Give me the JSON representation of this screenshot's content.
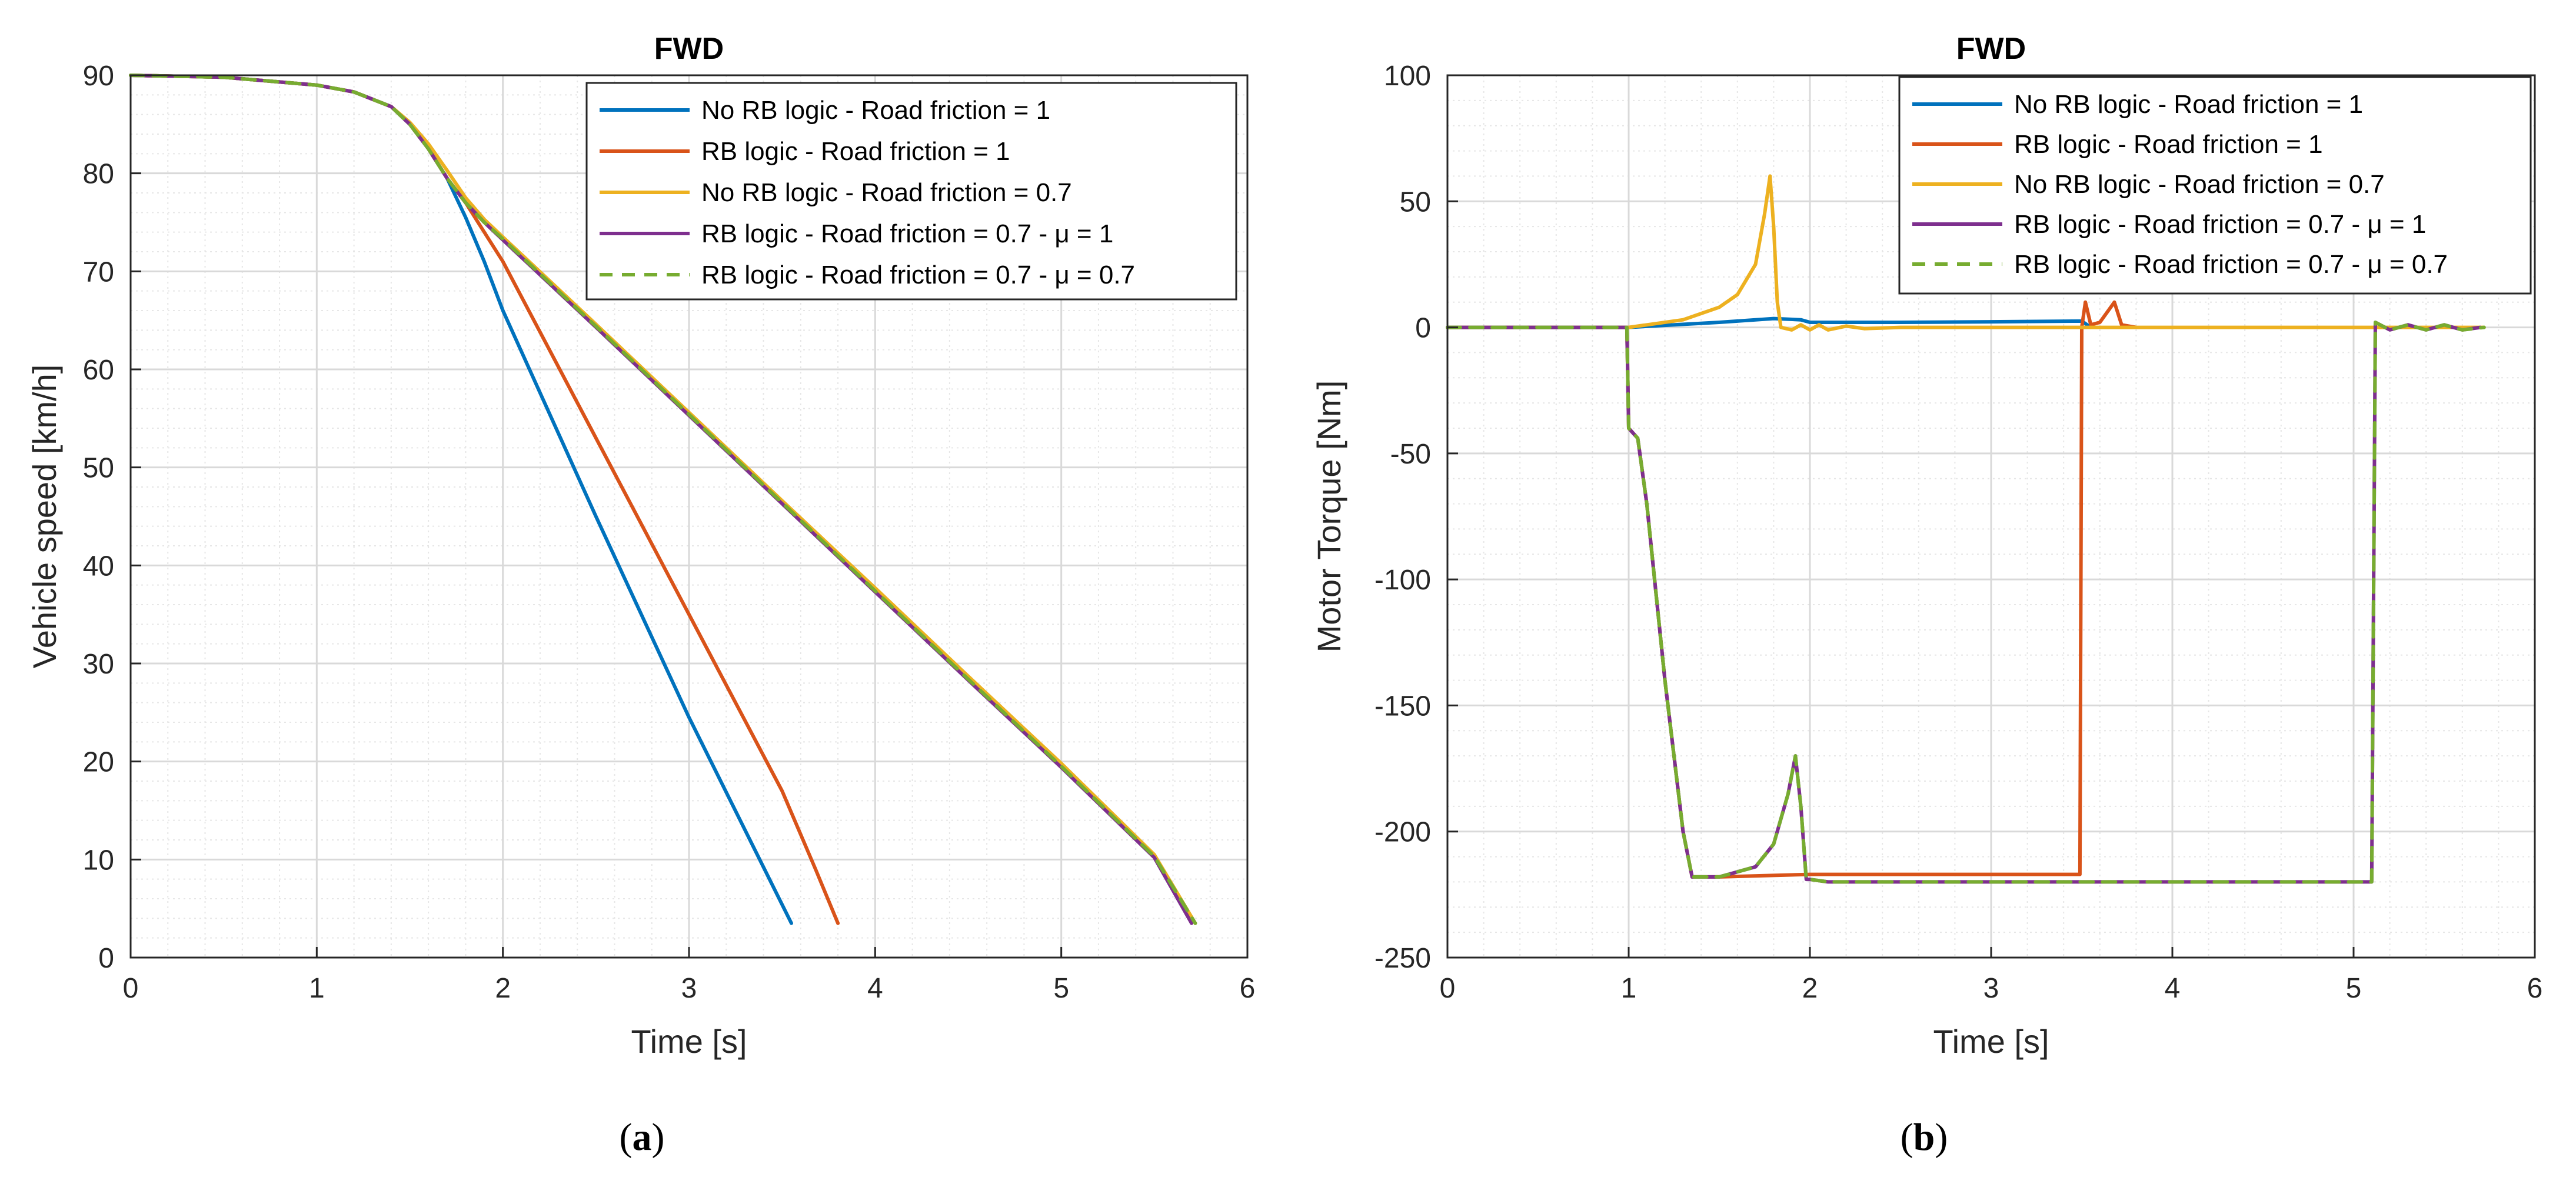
{
  "colors": {
    "no_rb_f1": "#0072BD",
    "rb_f1": "#D95319",
    "no_rb_f07": "#EDB120",
    "rb_f07_mu1": "#7E2F8E",
    "rb_f07_mu07": "#77AC30"
  },
  "chart_data": [
    {
      "type": "line",
      "title": "FWD",
      "xlabel": "Time [s]",
      "ylabel": "Vehicle speed [km/h]",
      "xlim": [
        0,
        6
      ],
      "ylim": [
        0,
        90
      ],
      "xticks": [
        "0",
        "1",
        "2",
        "3",
        "4",
        "5",
        "6"
      ],
      "yticks": [
        "0",
        "10",
        "20",
        "30",
        "40",
        "50",
        "60",
        "70",
        "80",
        "90"
      ],
      "xtick_values": [
        0,
        1,
        2,
        3,
        4,
        5,
        6
      ],
      "ytick_values": [
        0,
        10,
        20,
        30,
        40,
        50,
        60,
        70,
        80,
        90
      ],
      "grid": true,
      "legend_position": "top-right",
      "caption": {
        "open": "(",
        "letter": "a",
        "close": ")"
      },
      "series": [
        {
          "name": "No RB logic - Road friction = 1",
          "color_key": "no_rb_f1",
          "dash": false,
          "x": [
            0,
            0.5,
            1.0,
            1.2,
            1.4,
            1.5,
            1.6,
            1.7,
            1.8,
            1.9,
            2.0,
            2.5,
            3.0,
            3.55
          ],
          "y": [
            90,
            89.8,
            89,
            88.3,
            86.8,
            85,
            82.5,
            79.5,
            75.5,
            71,
            66,
            45,
            24.5,
            3.5
          ]
        },
        {
          "name": "RB logic - Road friction = 1",
          "color_key": "rb_f1",
          "dash": false,
          "x": [
            0,
            0.5,
            1.0,
            1.2,
            1.4,
            1.5,
            1.6,
            1.7,
            1.8,
            1.9,
            2.0,
            2.5,
            3.0,
            3.5,
            3.68,
            3.8
          ],
          "y": [
            90,
            89.8,
            89,
            88.3,
            86.8,
            85,
            82.5,
            79.5,
            77,
            74,
            71,
            53,
            35,
            17,
            9,
            3.5
          ]
        },
        {
          "name": "No RB logic - Road friction = 0.7",
          "color_key": "no_rb_f07",
          "dash": false,
          "x": [
            0,
            0.5,
            1.0,
            1.2,
            1.4,
            1.5,
            1.6,
            1.7,
            1.8,
            1.9,
            2.0,
            2.5,
            3.0,
            3.5,
            4.0,
            4.5,
            5.0,
            5.5,
            5.72
          ],
          "y": [
            90,
            89.8,
            89,
            88.3,
            86.8,
            85.2,
            83,
            80.3,
            77.5,
            75.3,
            73.5,
            64.6,
            55.6,
            46.6,
            37.7,
            28.7,
            19.8,
            10.5,
            3.5
          ]
        },
        {
          "name": "RB logic - Road friction = 0.7 - μ = 1",
          "color_key": "rb_f07_mu1",
          "dash": false,
          "x": [
            0,
            0.5,
            1.0,
            1.2,
            1.4,
            1.5,
            1.6,
            1.7,
            1.8,
            1.9,
            2.0,
            2.5,
            3.0,
            3.5,
            4.0,
            4.5,
            5.0,
            5.5,
            5.7
          ],
          "y": [
            90,
            89.8,
            89,
            88.3,
            86.8,
            85,
            82.5,
            79.5,
            77,
            75,
            73.2,
            64.3,
            55.3,
            46.3,
            37.3,
            28.3,
            19.4,
            10.2,
            3.5
          ]
        },
        {
          "name": "RB logic - Road friction = 0.7 - μ = 0.7",
          "color_key": "rb_f07_mu07",
          "dash": true,
          "x": [
            0,
            0.5,
            1.0,
            1.2,
            1.4,
            1.5,
            1.6,
            1.7,
            1.8,
            1.9,
            2.0,
            2.5,
            3.0,
            3.5,
            4.0,
            4.5,
            5.0,
            5.5,
            5.72
          ],
          "y": [
            90,
            89.8,
            89,
            88.3,
            86.8,
            85,
            82.5,
            79.5,
            77,
            75,
            73.3,
            64.4,
            55.4,
            46.4,
            37.4,
            28.4,
            19.5,
            10.3,
            3.5
          ]
        }
      ]
    },
    {
      "type": "line",
      "title": "FWD",
      "xlabel": "Time [s]",
      "ylabel": "Motor Torque [Nm]",
      "xlim": [
        0,
        6
      ],
      "ylim": [
        -250,
        100
      ],
      "xticks": [
        "0",
        "1",
        "2",
        "3",
        "4",
        "5",
        "6"
      ],
      "yticks": [
        "-250",
        "-200",
        "-150",
        "-100",
        "-50",
        "0",
        "50",
        "100"
      ],
      "xtick_values": [
        0,
        1,
        2,
        3,
        4,
        5,
        6
      ],
      "ytick_values": [
        -250,
        -200,
        -150,
        -100,
        -50,
        0,
        50,
        100
      ],
      "grid": true,
      "legend_position": "top-right",
      "caption": {
        "open": "(",
        "letter": "b",
        "close": ")"
      },
      "series": [
        {
          "name": "No RB logic - Road friction = 1",
          "color_key": "no_rb_f1",
          "dash": false,
          "x": [
            0,
            1.0,
            1.5,
            1.8,
            1.95,
            2.0,
            2.5,
            3.0,
            3.5,
            3.55
          ],
          "y": [
            0,
            0,
            2,
            3.5,
            3,
            2,
            2,
            2.2,
            2.5,
            0
          ]
        },
        {
          "name": "RB logic - Road friction = 1",
          "color_key": "rb_f1",
          "dash": false,
          "x": [
            0,
            0.99,
            1.0,
            1.05,
            1.1,
            1.2,
            1.3,
            1.35,
            1.5,
            2.0,
            2.5,
            3.0,
            3.49,
            3.5,
            3.52,
            3.55,
            3.6,
            3.65,
            3.68,
            3.72,
            3.8
          ],
          "y": [
            0,
            0,
            -40,
            -44,
            -70,
            -140,
            -200,
            -218,
            -218,
            -217,
            -217,
            -217,
            -217,
            0,
            10,
            1,
            2,
            7,
            10,
            1,
            0
          ]
        },
        {
          "name": "No RB logic - Road friction = 0.7",
          "color_key": "no_rb_f07",
          "dash": false,
          "x": [
            0,
            1.0,
            1.3,
            1.5,
            1.6,
            1.7,
            1.75,
            1.78,
            1.8,
            1.82,
            1.84,
            1.9,
            1.95,
            2.0,
            2.05,
            2.1,
            2.2,
            2.3,
            2.5,
            2.7,
            3.0,
            3.5,
            4.0,
            4.5,
            5.0,
            5.5,
            5.72
          ],
          "y": [
            0,
            0,
            3,
            8,
            13,
            25,
            45,
            60,
            40,
            10,
            0,
            -1,
            1,
            -1,
            1,
            -1,
            0.5,
            -0.5,
            0,
            0,
            0,
            0,
            0,
            0,
            0,
            0,
            0
          ]
        },
        {
          "name": "RB logic - Road friction = 0.7 - μ = 1",
          "color_key": "rb_f07_mu1",
          "dash": false,
          "x": [
            0,
            0.99,
            1.0,
            1.05,
            1.1,
            1.2,
            1.3,
            1.35,
            1.5,
            1.7,
            1.8,
            1.88,
            1.92,
            1.95,
            1.98,
            2.0,
            2.1,
            2.5,
            3.0,
            3.5,
            4.0,
            4.5,
            5.1,
            5.12,
            5.2,
            5.3,
            5.4,
            5.5,
            5.6,
            5.7
          ],
          "y": [
            0,
            0,
            -40,
            -44,
            -70,
            -140,
            -200,
            -218,
            -218,
            -214,
            -205,
            -185,
            -170,
            -190,
            -219,
            -219,
            -220,
            -220,
            -220,
            -220,
            -220,
            -220,
            -220,
            2,
            -1,
            1,
            -1,
            1,
            -1,
            0
          ]
        },
        {
          "name": "RB logic - Road friction = 0.7 - μ = 0.7",
          "color_key": "rb_f07_mu07",
          "dash": true,
          "x": [
            0,
            0.99,
            1.0,
            1.05,
            1.1,
            1.2,
            1.3,
            1.35,
            1.5,
            1.7,
            1.8,
            1.88,
            1.92,
            1.95,
            1.98,
            2.0,
            2.1,
            2.5,
            3.0,
            3.5,
            4.0,
            4.5,
            5.1,
            5.12,
            5.2,
            5.3,
            5.4,
            5.5,
            5.6,
            5.72
          ],
          "y": [
            0,
            0,
            -40,
            -44,
            -70,
            -140,
            -200,
            -218,
            -218,
            -214,
            -205,
            -185,
            -170,
            -190,
            -219,
            -219,
            -220,
            -220,
            -220,
            -220,
            -220,
            -220,
            -220,
            2,
            -1,
            1,
            -1,
            1,
            -1,
            0
          ]
        }
      ]
    }
  ]
}
